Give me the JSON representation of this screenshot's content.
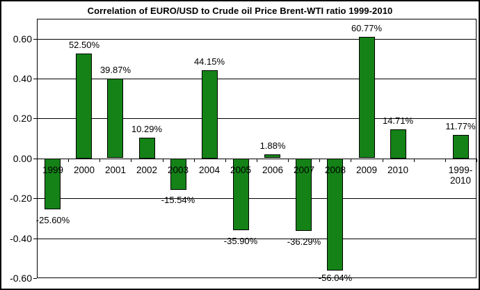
{
  "chart_data": {
    "type": "bar",
    "title": "Correlation of EURO/USD to Crude oil Price Brent-WTI ratio 1999-2010",
    "categories": [
      "1999",
      "2000",
      "2001",
      "2002",
      "2003",
      "2004",
      "2005",
      "2006",
      "2007",
      "2008",
      "2009",
      "2010",
      "",
      "1999-2010"
    ],
    "categories_display": [
      [
        "1999"
      ],
      [
        "2000"
      ],
      [
        "2001"
      ],
      [
        "2002"
      ],
      [
        "2003"
      ],
      [
        "2004"
      ],
      [
        "2005"
      ],
      [
        "2006"
      ],
      [
        "2007"
      ],
      [
        "2008"
      ],
      [
        "2009"
      ],
      [
        "2010"
      ],
      [],
      [
        "1999-",
        "2010"
      ]
    ],
    "values_percent": [
      -25.6,
      52.5,
      39.87,
      10.29,
      -15.54,
      44.15,
      -35.9,
      1.88,
      -36.29,
      -56.04,
      60.77,
      14.71,
      null,
      11.77
    ],
    "data_labels": [
      "-25.60%",
      "52.50%",
      "39.87%",
      "10.29%",
      "-15.54%",
      "44.15%",
      "-35.90%",
      "1.88%",
      "-36.29%",
      "-56.04%",
      "60.77%",
      "14.71%",
      null,
      "11.77%"
    ],
    "y_axis": {
      "tick_labels": [
        "0.60",
        "0.40",
        "0.20",
        "0.00",
        "-0.20",
        "-0.40",
        "-0.60"
      ],
      "tick_values": [
        0.6,
        0.4,
        0.2,
        0.0,
        -0.2,
        -0.4,
        -0.6
      ],
      "min": -0.6,
      "max": 0.7
    },
    "xlabel": "",
    "ylabel": "",
    "grid": true,
    "legend": "none",
    "colors": {
      "bar_fill": "#148217",
      "bar_border": "#000000",
      "grid_line": "#000000",
      "text": "#000000",
      "background": "#ffffff",
      "chart_border": "#000000"
    }
  }
}
